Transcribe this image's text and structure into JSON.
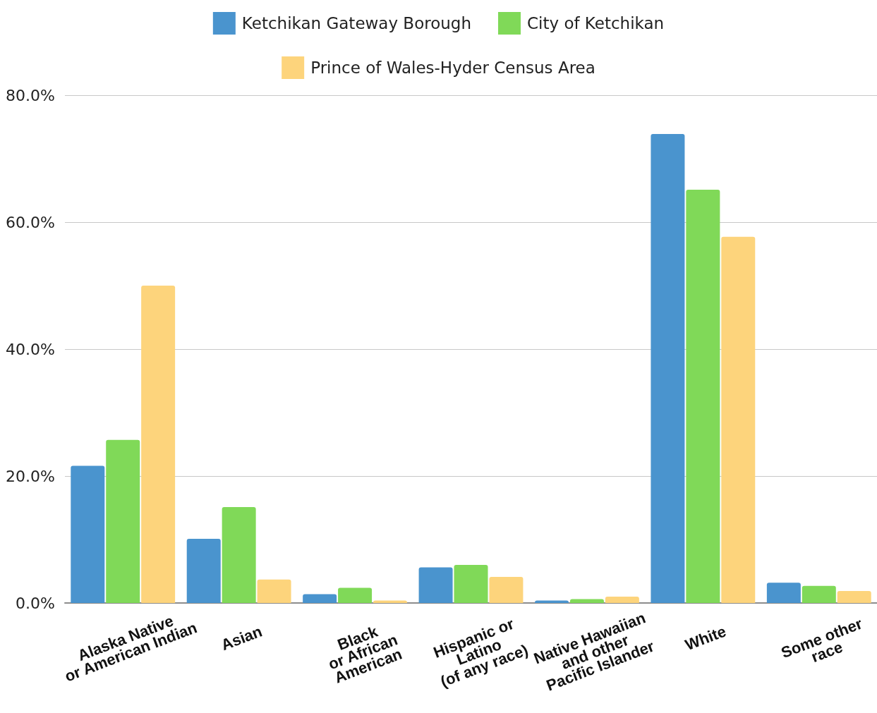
{
  "chart_data": {
    "type": "bar",
    "categories": [
      "Alaska Native\nor American Indian",
      "Asian",
      "Black\nor African\nAmerican",
      "Hispanic or\nLatino\n(of any race)",
      "Native Hawaiian\nand other\nPacific Islander",
      "White",
      "Some other\nrace"
    ],
    "series": [
      {
        "name": "Ketchikan Gateway Borough",
        "color": "#4a94ce",
        "values": [
          21.6,
          10.1,
          1.4,
          5.6,
          0.4,
          73.9,
          3.2
        ]
      },
      {
        "name": "City of Ketchikan",
        "color": "#80d958",
        "values": [
          25.7,
          15.1,
          2.4,
          6.0,
          0.6,
          65.1,
          2.7
        ]
      },
      {
        "name": "Prince of Wales-Hyder Census Area",
        "color": "#fdd47c",
        "values": [
          50.0,
          3.7,
          0.4,
          4.1,
          1.0,
          57.7,
          1.9
        ]
      }
    ],
    "ylim": [
      0,
      80
    ],
    "yticks": [
      {
        "value": 0,
        "label": "0.0%"
      },
      {
        "value": 20,
        "label": "20.0%"
      },
      {
        "value": 40,
        "label": "40.0%"
      },
      {
        "value": 60,
        "label": "60.0%"
      },
      {
        "value": 80,
        "label": "80.0%"
      }
    ],
    "grid": "y",
    "legend": "top"
  }
}
